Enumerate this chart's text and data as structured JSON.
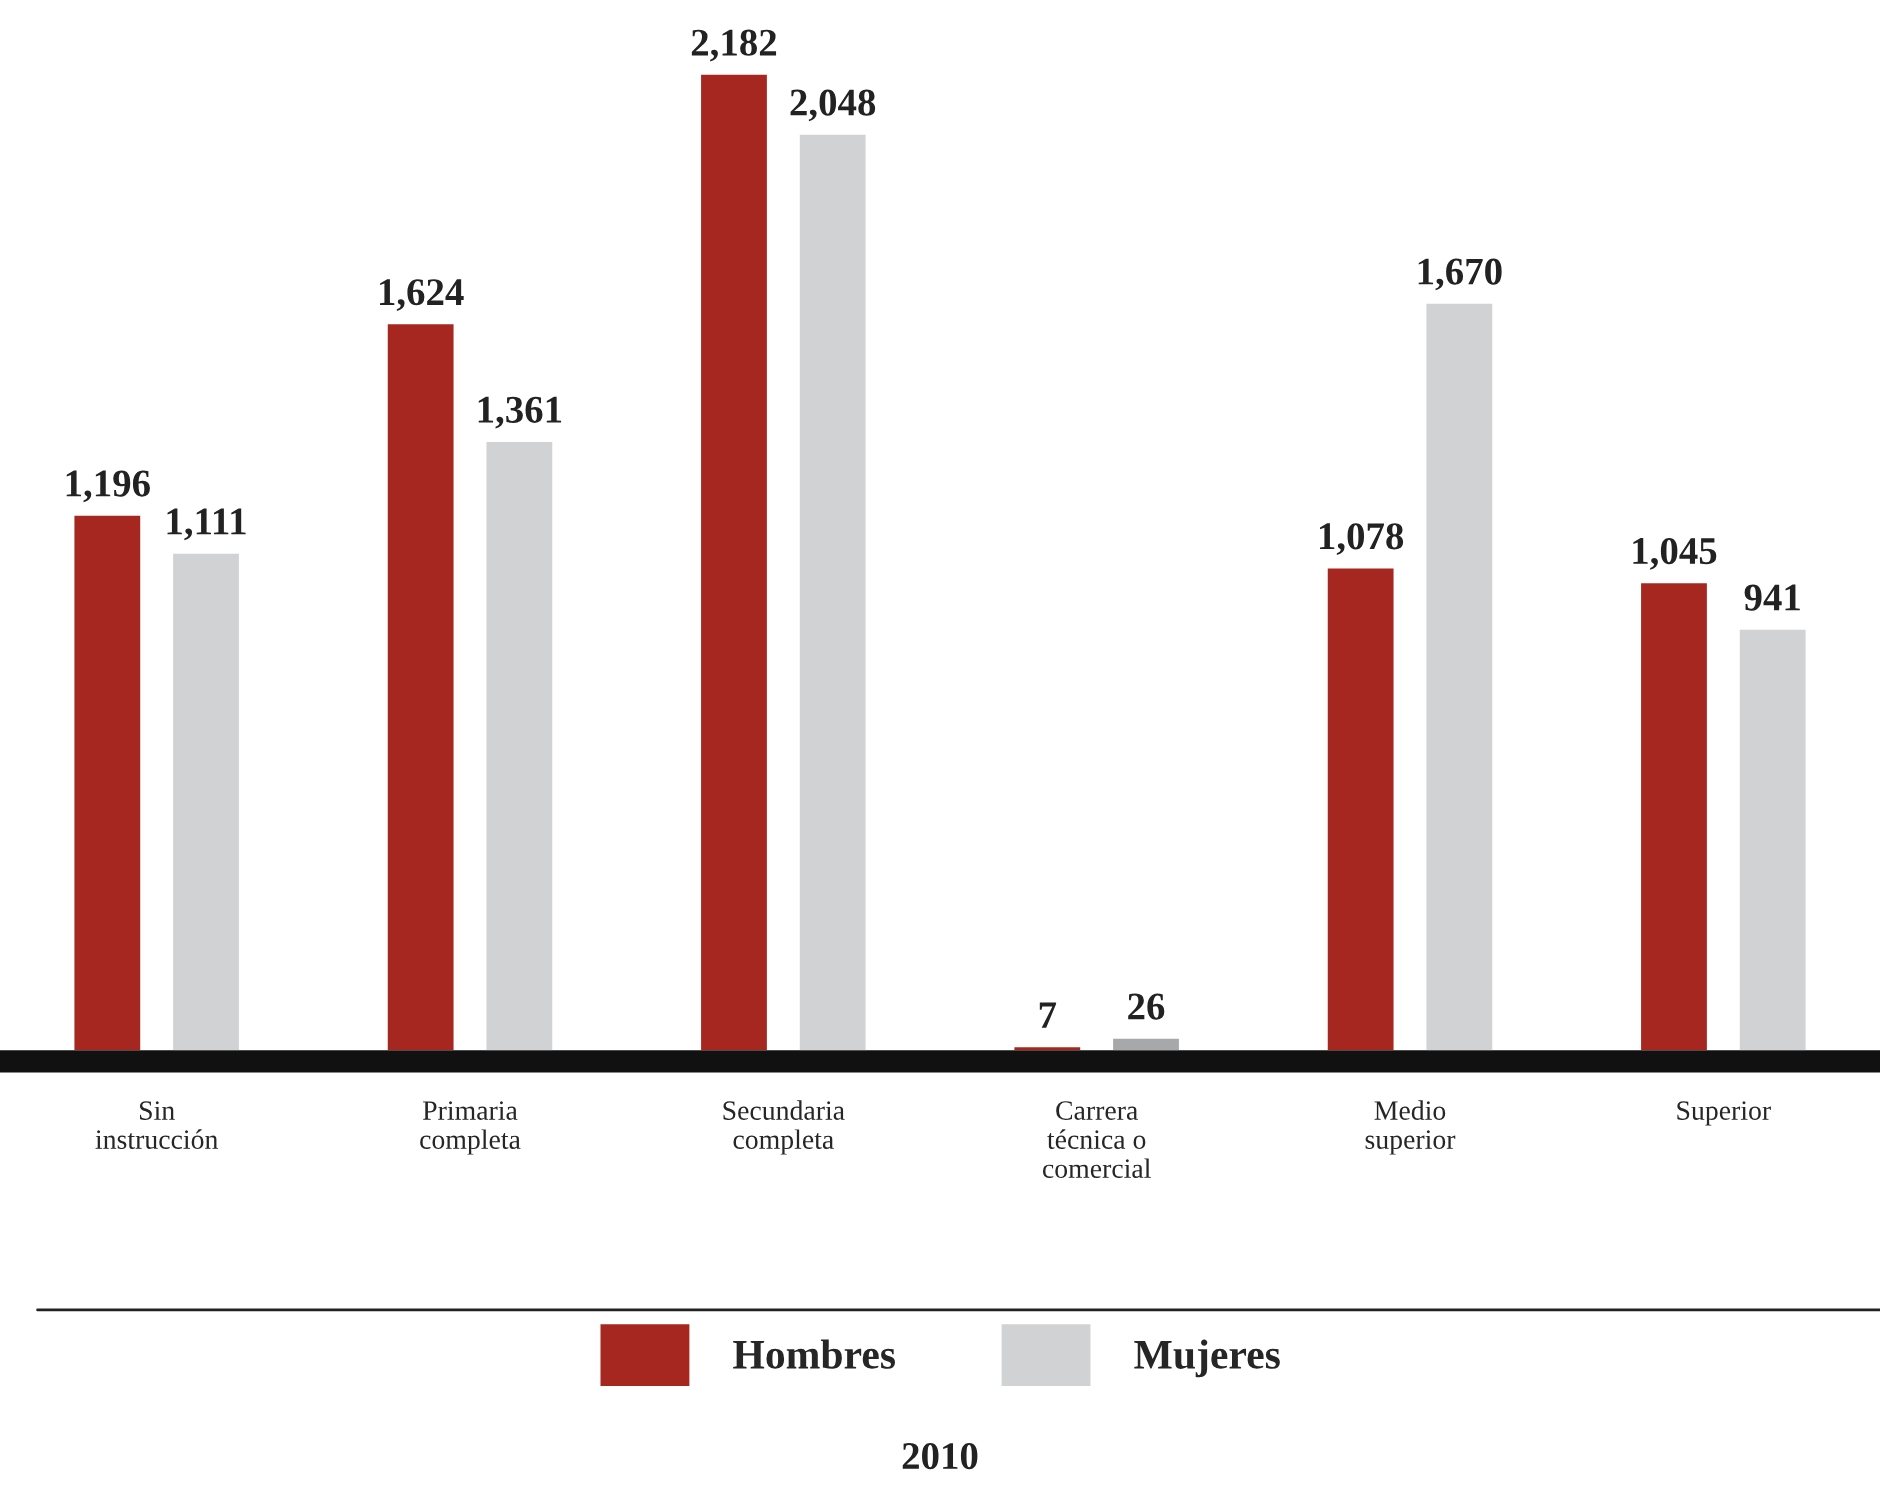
{
  "chart_data": {
    "type": "bar",
    "categories": [
      "Sin instrucción",
      "Primaria completa",
      "Secundaria completa",
      "Carrera técnica o comercial",
      "Medio superior",
      "Superior"
    ],
    "series": [
      {
        "name": "Hombres",
        "color": "#a6271f",
        "values": [
          1196,
          1624,
          2182,
          7,
          1078,
          1045
        ],
        "value_labels": [
          "1,196",
          "1,624",
          "2,182",
          "7",
          "1,078",
          "1,045"
        ]
      },
      {
        "name": "Mujeres",
        "color": "#d1d2d4",
        "colors": [
          "#d1d2d4",
          "#d1d2d4",
          "#d1d2d4",
          "#a7a8aa",
          "#d1d2d4",
          "#d1d2d4"
        ],
        "values": [
          1111,
          1361,
          2048,
          26,
          1670,
          941
        ],
        "value_labels": [
          "1,111",
          "1,361",
          "2,048",
          "26",
          "1,670",
          "941"
        ]
      }
    ],
    "legend": "bottom",
    "grid": false,
    "annotations": [
      "2010"
    ]
  }
}
